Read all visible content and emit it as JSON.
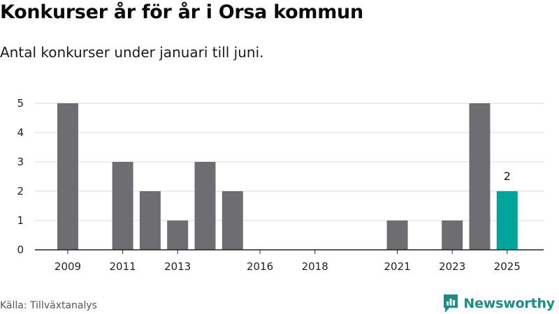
{
  "header": {
    "title": "Konkurser år för år i Orsa kommun",
    "subtitle": "Antal konkurser under januari till juni."
  },
  "footer": {
    "source": "Källa: Tillväxtanalys",
    "brand": "Newsworthy",
    "brand_icon": "newsworthy-logo-icon"
  },
  "colors": {
    "bar": "#6e6d72",
    "highlight": "#00a49a",
    "grid": "#d9d9d9",
    "axis": "#222222",
    "brand": "#1a8e84"
  },
  "chart_data": {
    "type": "bar",
    "title": "Konkurser år för år i Orsa kommun",
    "subtitle": "Antal konkurser under januari till juni.",
    "categories": [
      "2009",
      "2010",
      "2011",
      "2012",
      "2013",
      "2014",
      "2015",
      "2016",
      "2017",
      "2018",
      "2019",
      "2020",
      "2021",
      "2022",
      "2023",
      "2024",
      "2025"
    ],
    "values": [
      5,
      0,
      3,
      2,
      1,
      3,
      2,
      0,
      0,
      0,
      0,
      0,
      1,
      0,
      1,
      5,
      2
    ],
    "highlight_category": "2025",
    "data_labels": [
      {
        "category": "2025",
        "text": "2"
      }
    ],
    "x_tick_labels": [
      "2009",
      "2011",
      "2013",
      "2016",
      "2018",
      "2021",
      "2023",
      "2025"
    ],
    "y_ticks": [
      0,
      1,
      2,
      3,
      4,
      5
    ],
    "ylim": [
      0,
      5
    ],
    "xlabel": "",
    "ylabel": "",
    "grid": true,
    "legend": "none"
  }
}
